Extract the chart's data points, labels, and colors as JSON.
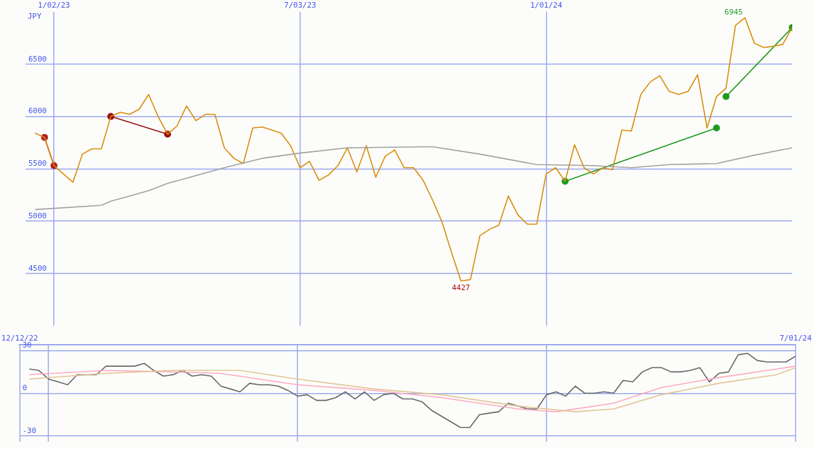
{
  "chart_data": [
    {
      "type": "line",
      "ylabel": "JPY",
      "x": [
        "2022-12-19",
        "2022-12-26",
        "2023-01-02",
        "2023-01-09",
        "2023-01-16",
        "2023-01-23",
        "2023-01-30",
        "2023-02-06",
        "2023-02-13",
        "2023-02-20",
        "2023-02-27",
        "2023-03-06",
        "2023-03-13",
        "2023-03-20",
        "2023-03-27",
        "2023-04-03",
        "2023-04-10",
        "2023-04-17",
        "2023-04-24",
        "2023-05-01",
        "2023-05-08",
        "2023-05-15",
        "2023-05-22",
        "2023-05-29",
        "2023-06-05",
        "2023-06-12",
        "2023-06-19",
        "2023-06-26",
        "2023-07-03",
        "2023-07-10",
        "2023-07-17",
        "2023-07-24",
        "2023-07-31",
        "2023-08-07",
        "2023-08-14",
        "2023-08-21",
        "2023-08-28",
        "2023-09-04",
        "2023-09-11",
        "2023-09-18",
        "2023-09-25",
        "2023-10-02",
        "2023-10-09",
        "2023-10-16",
        "2023-10-23",
        "2023-10-30",
        "2023-11-06",
        "2023-11-13",
        "2023-11-20",
        "2023-11-27",
        "2023-12-04",
        "2023-12-11",
        "2023-12-18",
        "2023-12-25",
        "2024-01-01",
        "2024-01-08",
        "2024-01-15",
        "2024-01-22",
        "2024-01-29",
        "2024-02-05",
        "2024-02-12",
        "2024-02-19",
        "2024-02-26",
        "2024-03-04",
        "2024-03-11",
        "2024-03-18",
        "2024-03-25",
        "2024-04-01",
        "2024-04-08",
        "2024-04-15",
        "2024-04-22",
        "2024-04-29",
        "2024-05-06",
        "2024-05-13",
        "2024-05-20",
        "2024-05-27",
        "2024-06-03",
        "2024-06-10",
        "2024-06-17",
        "2024-06-24",
        "2024-07-01"
      ],
      "series": [
        {
          "color": "#a0a0a0",
          "x": [
            "2022-12-19",
            "2023-02-06",
            "2023-02-13",
            "2023-02-27",
            "2023-03-13",
            "2023-03-27",
            "2023-04-10",
            "2023-05-08",
            "2023-06-05",
            "2023-07-03",
            "2023-08-07",
            "2023-10-02",
            "2023-10-09",
            "2023-11-13",
            "2023-12-25",
            "2024-02-05",
            "2024-03-04",
            "2024-04-01",
            "2024-05-06",
            "2024-06-03",
            "2024-07-01"
          ],
          "values": [
            5110,
            5150,
            5190,
            5240,
            5290,
            5360,
            5410,
            5510,
            5600,
            5650,
            5700,
            5710,
            5710,
            5640,
            5540,
            5530,
            5510,
            5540,
            5550,
            5630,
            5700
          ]
        },
        {
          "color": "#d98c0a",
          "values": [
            5840,
            5800,
            5530,
            5450,
            5370,
            5640,
            5690,
            5690,
            6000,
            6040,
            6020,
            6070,
            6210,
            6000,
            5830,
            5910,
            6100,
            5960,
            6020,
            6020,
            5700,
            5600,
            5550,
            5890,
            5900,
            5870,
            5840,
            5720,
            5510,
            5570,
            5390,
            5440,
            5530,
            5700,
            5470,
            5720,
            5420,
            5620,
            5680,
            5510,
            5510,
            5390,
            5200,
            4990,
            4700,
            4427,
            4440,
            4860,
            4920,
            4960,
            5240,
            5060,
            4970,
            4970,
            5450,
            5510,
            5380,
            5730,
            5510,
            5450,
            5510,
            5490,
            5870,
            5860,
            6210,
            6330,
            6390,
            6240,
            6210,
            6240,
            6400,
            5890,
            6190,
            6270,
            6870,
            6945,
            6700,
            6660,
            6670,
            6690,
            6850
          ],
          "value_labels": [
            null,
            null,
            null,
            null,
            null,
            null,
            null,
            null,
            null,
            null,
            null,
            null,
            null,
            null,
            null,
            null,
            null,
            null,
            null,
            null,
            null,
            null,
            null,
            null,
            null,
            null,
            null,
            null,
            null,
            null,
            null,
            null,
            null,
            null,
            null,
            null,
            null,
            null,
            null,
            null,
            null,
            null,
            null,
            null,
            null,
            "4427",
            null,
            null,
            null,
            null,
            null,
            null,
            null,
            null,
            null,
            null,
            null,
            null,
            null,
            null,
            null,
            null,
            null,
            null,
            null,
            null,
            null,
            null,
            null,
            null,
            null,
            null,
            null,
            null,
            null,
            "6945",
            null,
            null,
            null,
            null,
            null
          ]
        },
        {
          "color": "#b02020",
          "marker": "circle",
          "x": [
            "2022-12-26",
            "2023-01-02"
          ],
          "values": [
            5800,
            5530
          ]
        },
        {
          "color": "#991010",
          "marker": "circle",
          "x": [
            "2023-02-13",
            "2023-03-27"
          ],
          "values": [
            6000,
            5830
          ]
        },
        {
          "color": "#1f9a1f",
          "marker": "circle",
          "x": [
            "2024-01-15",
            "2024-05-06"
          ],
          "values": [
            5380,
            5890
          ]
        },
        {
          "color": "#1f9a1f",
          "marker": "circle",
          "x": [
            "2024-05-13",
            "2024-07-01"
          ],
          "values": [
            6190,
            6850
          ]
        }
      ],
      "xlim": [
        "2022-12-12",
        "2024-07-01"
      ],
      "xticks": [
        {
          "value": "2023-01-02",
          "label": "1/02/23"
        },
        {
          "value": "2023-07-03",
          "label": "7/03/23"
        },
        {
          "value": "2024-01-01",
          "label": "1/01/24"
        }
      ],
      "ylim": [
        4000,
        7000
      ],
      "yticks": [
        4500,
        5000,
        5500,
        6000,
        6500
      ],
      "grid": true
    },
    {
      "type": "line",
      "x": [
        "2022-12-19",
        "2022-12-26",
        "2023-01-02",
        "2023-01-09",
        "2023-01-16",
        "2023-01-23",
        "2023-01-30",
        "2023-02-06",
        "2023-02-13",
        "2023-02-20",
        "2023-02-27",
        "2023-03-06",
        "2023-03-13",
        "2023-03-20",
        "2023-03-27",
        "2023-04-03",
        "2023-04-10",
        "2023-04-17",
        "2023-04-24",
        "2023-05-01",
        "2023-05-08",
        "2023-05-15",
        "2023-05-22",
        "2023-05-29",
        "2023-06-05",
        "2023-06-12",
        "2023-06-19",
        "2023-06-26",
        "2023-07-03",
        "2023-07-10",
        "2023-07-17",
        "2023-07-24",
        "2023-07-31",
        "2023-08-07",
        "2023-08-14",
        "2023-08-21",
        "2023-08-28",
        "2023-09-04",
        "2023-09-11",
        "2023-09-18",
        "2023-09-25",
        "2023-10-02",
        "2023-10-09",
        "2023-10-16",
        "2023-10-23",
        "2023-10-30",
        "2023-11-06",
        "2023-11-13",
        "2023-11-20",
        "2023-11-27",
        "2023-12-04",
        "2023-12-11",
        "2023-12-18",
        "2023-12-25",
        "2024-01-01",
        "2024-01-08",
        "2024-01-15",
        "2024-01-22",
        "2024-01-29",
        "2024-02-05",
        "2024-02-12",
        "2024-02-19",
        "2024-02-26",
        "2024-03-04",
        "2024-03-11",
        "2024-03-18",
        "2024-03-25",
        "2024-04-01",
        "2024-04-08",
        "2024-04-15",
        "2024-04-22",
        "2024-04-29",
        "2024-05-06",
        "2024-05-13",
        "2024-05-20",
        "2024-05-27",
        "2024-06-03",
        "2024-06-10",
        "2024-06-17",
        "2024-06-24",
        "2024-07-01"
      ],
      "series": [
        {
          "color": "#e2c595",
          "x": [
            "2022-12-19",
            "2023-02-13",
            "2023-04-03",
            "2023-05-22",
            "2023-07-03",
            "2023-08-28",
            "2023-10-16",
            "2023-12-11",
            "2024-01-22",
            "2024-02-19",
            "2024-03-25",
            "2024-05-06",
            "2024-06-17",
            "2024-07-01"
          ],
          "values": [
            10,
            14,
            16,
            16,
            10,
            3,
            -1,
            -9,
            -13,
            -11,
            -1,
            7,
            13,
            18
          ]
        },
        {
          "color": "#ffa8c0",
          "x": [
            "2022-12-19",
            "2023-02-13",
            "2023-04-03",
            "2023-05-08",
            "2023-07-03",
            "2023-08-28",
            "2023-10-16",
            "2023-12-11",
            "2024-01-08",
            "2024-02-19",
            "2024-03-25",
            "2024-05-06",
            "2024-06-17",
            "2024-07-01"
          ],
          "values": [
            13,
            16,
            15,
            14,
            6,
            2,
            -3,
            -11,
            -13,
            -7,
            4,
            11,
            17,
            19
          ]
        },
        {
          "color": "#666666",
          "values": [
            17,
            16,
            10,
            8,
            6,
            13,
            13,
            13,
            19,
            19,
            19,
            19,
            21,
            16,
            12,
            13,
            16,
            12,
            13,
            12,
            5,
            3,
            1,
            7,
            6,
            6,
            5,
            2,
            -2,
            -1,
            -5,
            -5,
            -3,
            1,
            -4,
            1,
            -5,
            -1,
            0,
            -4,
            -4,
            -6,
            -12,
            -16,
            -20,
            -24,
            -24,
            -15,
            -14,
            -13,
            -7,
            -9,
            -11,
            -11,
            -1,
            1,
            -2,
            5,
            0,
            0,
            1,
            0,
            9,
            8,
            15,
            18,
            18,
            15,
            15,
            16,
            18,
            8,
            14,
            15,
            27,
            28,
            23,
            22,
            22,
            22,
            26
          ]
        }
      ],
      "xlim": [
        "2022-12-12",
        "2024-07-01"
      ],
      "xticks": [
        {
          "value": "2022-12-12",
          "label": "12/12/22"
        },
        {
          "value": "2023-01-02",
          "label": null
        },
        {
          "value": "2023-07-03",
          "label": null
        },
        {
          "value": "2024-01-01",
          "label": null
        },
        {
          "value": "2024-07-01",
          "label": "7/01/24"
        }
      ],
      "ylim": [
        -34,
        34
      ],
      "yticks": [
        -30,
        0,
        30
      ],
      "grid": true
    }
  ]
}
